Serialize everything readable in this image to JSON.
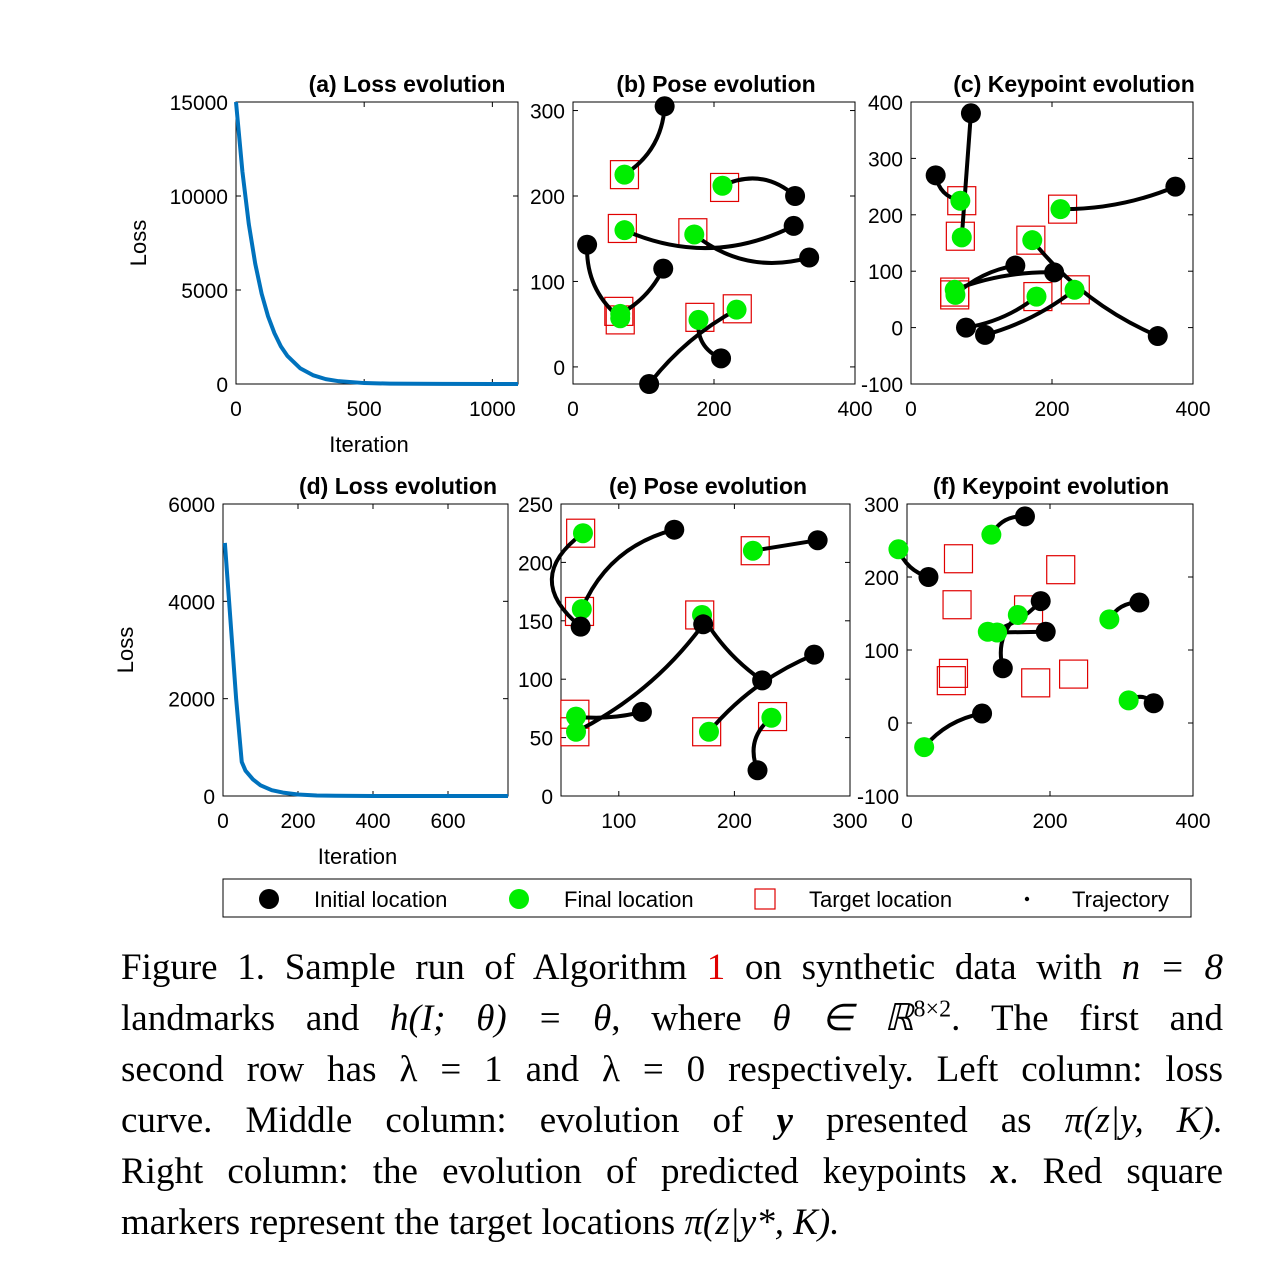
{
  "colors": {
    "loss_line": "#0072bd",
    "final": "#00ee00",
    "target": "#e00000",
    "initial": "#000000"
  },
  "legend": {
    "initial": "Initial location",
    "final": "Final location",
    "target": "Target location",
    "trajectory": "Trajectory"
  },
  "caption": {
    "fig_label": "Figure 1.",
    "l1_a": "Sample run of Algorithm",
    "l1_ref": "1",
    "l1_b": "on synthetic data with",
    "l1_math": "n = 8",
    "l2_a": "landmarks and",
    "l2_math1": "h(I; θ) = θ",
    "l2_b": ", where",
    "l2_math2": "θ ∈ ℝ",
    "l2_sup": "8×2",
    "l2_c": ". The first and",
    "l3": "second row has λ = 1 and λ = 0 respectively. Left column: loss",
    "l4_a": "curve. Middle column: evolution of",
    "l4_y": "y",
    "l4_b": "presented as",
    "l4_math": "π(z|y, K).",
    "l5_a": "Right column: the evolution of predicted keypoints",
    "l5_x": "x",
    "l5_b": ". Red square",
    "l6_a": "markers represent the target locations",
    "l6_math": "π(z|y*, K)."
  },
  "chart_data": [
    {
      "id": "a",
      "type": "line",
      "title": "(a) Loss evolution",
      "xlabel": "Iteration",
      "ylabel": "Loss",
      "xlim": [
        0,
        1100
      ],
      "ylim": [
        0,
        15000
      ],
      "xticks": [
        0,
        500,
        1000
      ],
      "yticks": [
        0,
        5000,
        10000,
        15000
      ],
      "series": [
        {
          "x": [
            0,
            25,
            50,
            75,
            100,
            125,
            150,
            175,
            200,
            250,
            300,
            350,
            400,
            500,
            600,
            800,
            1000,
            1100
          ],
          "y": [
            15000,
            11300,
            8500,
            6400,
            4800,
            3600,
            2700,
            2000,
            1500,
            840,
            470,
            260,
            150,
            50,
            20,
            5,
            0,
            0
          ]
        }
      ]
    },
    {
      "id": "b",
      "type": "scatter",
      "title": "(b) Pose evolution",
      "xlim": [
        0,
        400
      ],
      "ylim": [
        -20,
        310
      ],
      "xticks": [
        0,
        200,
        400
      ],
      "yticks": [
        0,
        100,
        200,
        300
      ],
      "points": [
        {
          "initial": [
            130,
            305
          ],
          "final": [
            73,
            225
          ],
          "target": [
            73,
            225
          ],
          "bend": -10
        },
        {
          "initial": [
            315,
            200
          ],
          "final": [
            212,
            212
          ],
          "target": [
            215,
            210
          ],
          "bend": 12
        },
        {
          "initial": [
            313,
            165
          ],
          "final": [
            73,
            160
          ],
          "target": [
            70,
            162
          ],
          "bend": -20
        },
        {
          "initial": [
            335,
            128
          ],
          "final": [
            172,
            155
          ],
          "target": [
            170,
            157
          ],
          "bend": -15
        },
        {
          "initial": [
            20,
            143
          ],
          "final": [
            67,
            57
          ],
          "target": [
            67,
            55
          ],
          "bend": 10
        },
        {
          "initial": [
            128,
            115
          ],
          "final": [
            67,
            62
          ],
          "target": [
            65,
            65
          ],
          "bend": -5
        },
        {
          "initial": [
            210,
            10
          ],
          "final": [
            178,
            55
          ],
          "target": [
            180,
            58
          ],
          "bend": -8
        },
        {
          "initial": [
            108,
            -20
          ],
          "final": [
            232,
            67
          ],
          "target": [
            233,
            68
          ],
          "bend": -6
        }
      ]
    },
    {
      "id": "c",
      "type": "scatter",
      "title": "(c) Keypoint evolution",
      "xlim": [
        0,
        400
      ],
      "ylim": [
        -100,
        400
      ],
      "xticks": [
        0,
        200,
        400
      ],
      "yticks": [
        -100,
        0,
        100,
        200,
        300,
        400
      ],
      "points": [
        {
          "initial": [
            85,
            380
          ],
          "final": [
            72,
            160
          ],
          "target": [
            70,
            162
          ],
          "bend": 0
        },
        {
          "initial": [
            35,
            270
          ],
          "final": [
            70,
            225
          ],
          "target": [
            72,
            225
          ],
          "bend": 6
        },
        {
          "initial": [
            375,
            250
          ],
          "final": [
            212,
            210
          ],
          "target": [
            215,
            210
          ],
          "bend": -6
        },
        {
          "initial": [
            148,
            110
          ],
          "final": [
            63,
            58
          ],
          "target": [
            62,
            58
          ],
          "bend": 5
        },
        {
          "initial": [
            203,
            98
          ],
          "final": [
            62,
            67
          ],
          "target": [
            62,
            63
          ],
          "bend": 5
        },
        {
          "initial": [
            350,
            -15
          ],
          "final": [
            172,
            155
          ],
          "target": [
            170,
            155
          ],
          "bend": -10
        },
        {
          "initial": [
            78,
            0
          ],
          "final": [
            178,
            55
          ],
          "target": [
            180,
            55
          ],
          "bend": 5
        },
        {
          "initial": [
            105,
            -13
          ],
          "final": [
            232,
            67
          ],
          "target": [
            233,
            67
          ],
          "bend": 5
        }
      ]
    },
    {
      "id": "d",
      "type": "line",
      "title": "(d) Loss evolution",
      "xlabel": "Iteration",
      "ylabel": "Loss",
      "xlim": [
        0,
        760
      ],
      "ylim": [
        0,
        6000
      ],
      "xticks": [
        0,
        200,
        400,
        600
      ],
      "yticks": [
        0,
        2000,
        4000,
        6000
      ],
      "series": [
        {
          "x": [
            5,
            20,
            35,
            50,
            60,
            80,
            100,
            130,
            160,
            200,
            250,
            300,
            400,
            500,
            760
          ],
          "y": [
            5200,
            3600,
            2000,
            700,
            520,
            340,
            220,
            120,
            70,
            30,
            10,
            4,
            0,
            0,
            0
          ]
        }
      ]
    },
    {
      "id": "e",
      "type": "scatter",
      "title": "(e) Pose evolution",
      "xlim": [
        50,
        300
      ],
      "ylim": [
        0,
        250
      ],
      "xticks": [
        100,
        200,
        300
      ],
      "yticks": [
        0,
        50,
        100,
        150,
        200,
        250
      ],
      "points": [
        {
          "initial": [
            148,
            228
          ],
          "final": [
            68,
            160
          ],
          "target": [
            66,
            158
          ],
          "bend": 15
        },
        {
          "initial": [
            67,
            145
          ],
          "final": [
            69,
            225
          ],
          "target": [
            67,
            225
          ],
          "bend": -30
        },
        {
          "initial": [
            272,
            219
          ],
          "final": [
            216,
            210
          ],
          "target": [
            218,
            210
          ],
          "bend": 0
        },
        {
          "initial": [
            269,
            121
          ],
          "final": [
            178,
            55
          ],
          "target": [
            176,
            55
          ],
          "bend": 8
        },
        {
          "initial": [
            224,
            99
          ],
          "final": [
            172,
            155
          ],
          "target": [
            170,
            155
          ],
          "bend": -5
        },
        {
          "initial": [
            173,
            147
          ],
          "final": [
            63,
            55
          ],
          "target": [
            62,
            55
          ],
          "bend": -10
        },
        {
          "initial": [
            120,
            72
          ],
          "final": [
            63,
            68
          ],
          "target": [
            62,
            70
          ],
          "bend": -3
        },
        {
          "initial": [
            220,
            22
          ],
          "final": [
            232,
            67
          ],
          "target": [
            233,
            68
          ],
          "bend": -10
        }
      ]
    },
    {
      "id": "f",
      "type": "scatter",
      "title": "(f) Keypoint evolution",
      "xlim": [
        0,
        400
      ],
      "ylim": [
        -100,
        300
      ],
      "xticks": [
        0,
        200,
        400
      ],
      "yticks": [
        -100,
        0,
        100,
        200,
        300
      ],
      "targets": [
        [
          72,
          225
        ],
        [
          215,
          210
        ],
        [
          70,
          162
        ],
        [
          170,
          155
        ],
        [
          65,
          68
        ],
        [
          62,
          58
        ],
        [
          180,
          55
        ],
        [
          233,
          67
        ]
      ],
      "points": [
        {
          "initial": [
            165,
            283
          ],
          "final": [
            118,
            258
          ],
          "bend": 6
        },
        {
          "initial": [
            30,
            200
          ],
          "final": [
            -12,
            238
          ],
          "bend": -5
        },
        {
          "initial": [
            187,
            167
          ],
          "final": [
            113,
            125
          ],
          "bend": -5
        },
        {
          "initial": [
            194,
            125
          ],
          "final": [
            126,
            124
          ],
          "bend": 0
        },
        {
          "initial": [
            134,
            75
          ],
          "final": [
            155,
            148
          ],
          "bend": -8
        },
        {
          "initial": [
            325,
            165
          ],
          "final": [
            283,
            142
          ],
          "bend": 5
        },
        {
          "initial": [
            345,
            27
          ],
          "final": [
            310,
            31
          ],
          "bend": 5
        },
        {
          "initial": [
            105,
            13
          ],
          "final": [
            24,
            -33
          ],
          "bend": 6
        }
      ]
    }
  ]
}
